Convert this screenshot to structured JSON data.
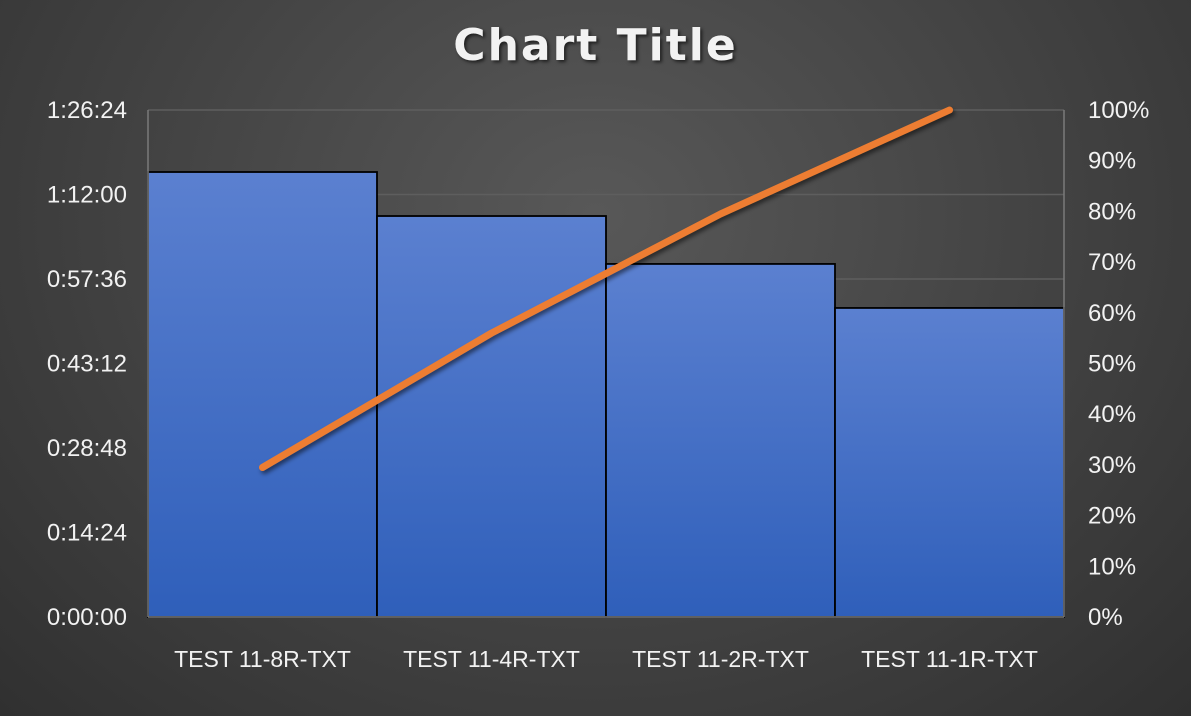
{
  "chart_data": {
    "type": "bar",
    "title": "Chart Title",
    "categories": [
      "TEST 11-8R-TXT",
      "TEST 11-4R-TXT",
      "TEST 11-2R-TXT",
      "TEST 11-1R-TXT"
    ],
    "series": [
      {
        "type": "bar",
        "axis": "left",
        "values": [
          "1:15:50",
          "1:08:20",
          "1:00:10",
          "0:52:40"
        ],
        "color": "#4472c4"
      },
      {
        "type": "line",
        "axis": "right",
        "values": [
          0.295,
          0.56,
          0.795,
          1.0
        ],
        "color": "#ed7d31"
      }
    ],
    "y_left": {
      "ticks": [
        "0:00:00",
        "0:14:24",
        "0:28:48",
        "0:43:12",
        "0:57:36",
        "1:12:00",
        "1:26:24"
      ],
      "range": [
        "0:00:00",
        "1:26:24"
      ]
    },
    "y_right": {
      "ticks": [
        "0%",
        "10%",
        "20%",
        "30%",
        "40%",
        "50%",
        "60%",
        "70%",
        "80%",
        "90%",
        "100%"
      ],
      "range": [
        0,
        1
      ]
    },
    "grid": true,
    "legend": "none"
  }
}
